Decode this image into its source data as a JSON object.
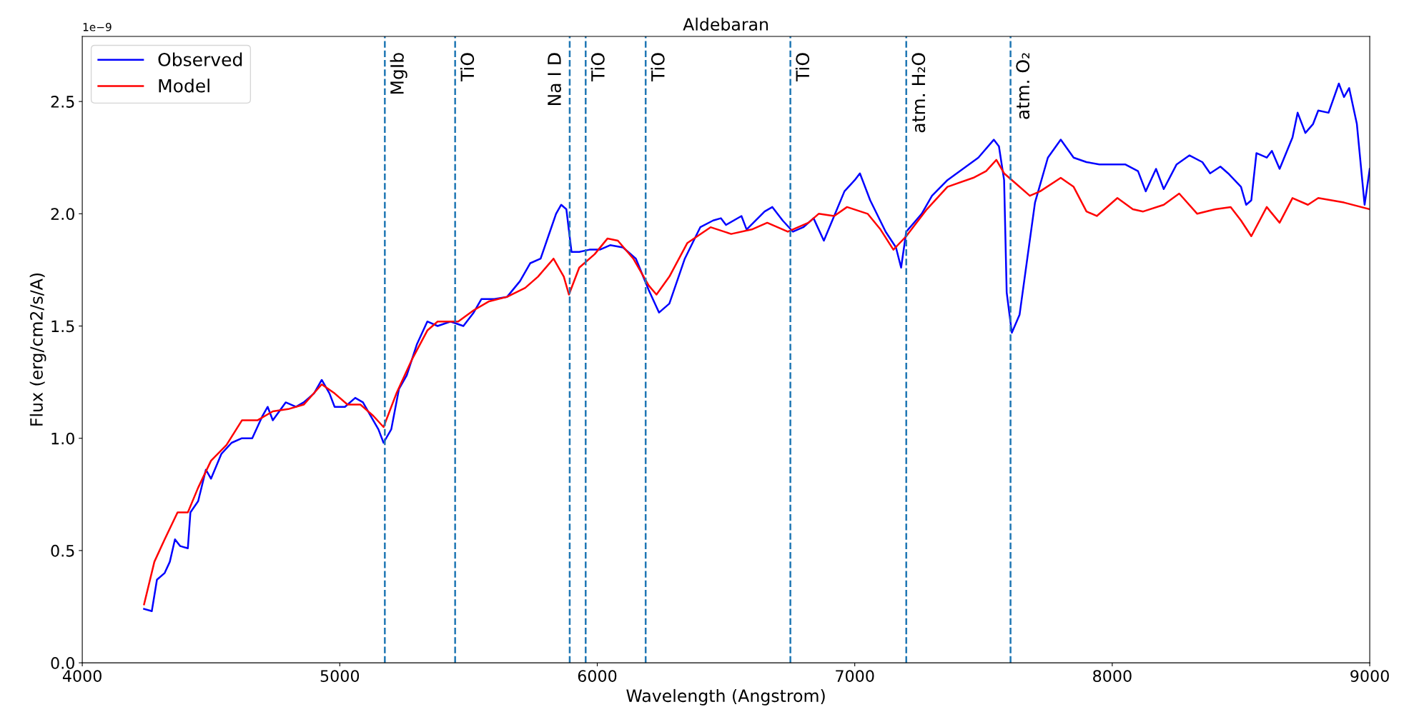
{
  "chart_data": {
    "type": "line",
    "title": "Aldebaran",
    "xlabel": "Wavelength (Angstrom)",
    "ylabel": "Flux (erg/cm2/s/A)",
    "annotations": [
      "1e−9"
    ],
    "xlim": [
      4000,
      9000
    ],
    "xticks": [
      4000,
      5000,
      6000,
      7000,
      8000,
      9000
    ],
    "ylim": [
      0,
      2.79
    ],
    "yticks": [
      {
        "value": 0,
        "label": "0.0"
      },
      0.5,
      {
        "value": 1,
        "label": "1.0"
      },
      1.5,
      {
        "value": 2,
        "label": "2.0"
      },
      2.5
    ],
    "grid": false,
    "legend": "top left",
    "line_style": "solid",
    "marker": "none",
    "series": [
      {
        "name": "Observed",
        "color": "#0000ff",
        "x": [
          4240,
          4270,
          4290,
          4320,
          4340,
          4360,
          4380,
          4410,
          4420,
          4450,
          4480,
          4500,
          4540,
          4580,
          4620,
          4660,
          4680,
          4700,
          4720,
          4740,
          4790,
          4830,
          4860,
          4900,
          4930,
          4960,
          4980,
          5020,
          5060,
          5090,
          5120,
          5150,
          5170,
          5200,
          5230,
          5260,
          5300,
          5340,
          5380,
          5430,
          5480,
          5520,
          5550,
          5600,
          5650,
          5700,
          5740,
          5780,
          5810,
          5840,
          5860,
          5880,
          5900,
          5930,
          5970,
          6010,
          6050,
          6100,
          6150,
          6200,
          6240,
          6280,
          6340,
          6400,
          6450,
          6480,
          6500,
          6560,
          6580,
          6650,
          6680,
          6720,
          6760,
          6800,
          6840,
          6880,
          6920,
          6960,
          7000,
          7020,
          7060,
          7120,
          7160,
          7180,
          7200,
          7260,
          7300,
          7360,
          7420,
          7480,
          7540,
          7560,
          7580,
          7590,
          7610,
          7640,
          7670,
          7700,
          7750,
          7800,
          7850,
          7900,
          7950,
          8000,
          8050,
          8100,
          8130,
          8170,
          8200,
          8250,
          8300,
          8350,
          8380,
          8420,
          8450,
          8500,
          8520,
          8540,
          8560,
          8600,
          8620,
          8650,
          8700,
          8720,
          8750,
          8780,
          8800,
          8840,
          8880,
          8900,
          8920,
          8950,
          8980,
          9000
        ],
        "values": [
          0.24,
          0.23,
          0.37,
          0.4,
          0.45,
          0.55,
          0.52,
          0.51,
          0.67,
          0.72,
          0.86,
          0.82,
          0.93,
          0.98,
          1.0,
          1.0,
          1.05,
          1.1,
          1.14,
          1.08,
          1.16,
          1.14,
          1.16,
          1.2,
          1.26,
          1.2,
          1.14,
          1.14,
          1.18,
          1.16,
          1.1,
          1.04,
          0.98,
          1.04,
          1.22,
          1.28,
          1.42,
          1.52,
          1.5,
          1.52,
          1.5,
          1.56,
          1.62,
          1.62,
          1.63,
          1.7,
          1.78,
          1.8,
          1.9,
          2.0,
          2.04,
          2.02,
          1.83,
          1.83,
          1.84,
          1.84,
          1.86,
          1.85,
          1.8,
          1.66,
          1.56,
          1.6,
          1.8,
          1.94,
          1.97,
          1.98,
          1.95,
          1.99,
          1.93,
          2.01,
          2.03,
          1.97,
          1.92,
          1.94,
          1.98,
          1.88,
          1.99,
          2.1,
          2.15,
          2.18,
          2.06,
          1.92,
          1.85,
          1.76,
          1.92,
          2.0,
          2.08,
          2.15,
          2.2,
          2.25,
          2.33,
          2.3,
          2.15,
          1.65,
          1.47,
          1.55,
          1.8,
          2.05,
          2.25,
          2.33,
          2.25,
          2.23,
          2.22,
          2.22,
          2.22,
          2.19,
          2.1,
          2.2,
          2.11,
          2.22,
          2.26,
          2.23,
          2.18,
          2.21,
          2.18,
          2.12,
          2.04,
          2.06,
          2.27,
          2.25,
          2.28,
          2.2,
          2.34,
          2.45,
          2.36,
          2.4,
          2.46,
          2.45,
          2.58,
          2.52,
          2.56,
          2.4,
          2.04,
          2.2
        ]
      },
      {
        "name": "Model",
        "color": "#ff0000",
        "x": [
          4240,
          4280,
          4320,
          4370,
          4410,
          4450,
          4500,
          4560,
          4620,
          4680,
          4740,
          4800,
          4860,
          4930,
          4980,
          5030,
          5080,
          5130,
          5170,
          5220,
          5280,
          5340,
          5380,
          5460,
          5520,
          5580,
          5650,
          5720,
          5770,
          5830,
          5870,
          5890,
          5930,
          5990,
          6040,
          6080,
          6140,
          6200,
          6230,
          6280,
          6350,
          6440,
          6520,
          6600,
          6660,
          6740,
          6820,
          6860,
          6920,
          6970,
          7050,
          7100,
          7150,
          7200,
          7280,
          7360,
          7460,
          7510,
          7550,
          7580,
          7620,
          7680,
          7720,
          7800,
          7850,
          7900,
          7940,
          8020,
          8080,
          8120,
          8200,
          8260,
          8330,
          8400,
          8460,
          8500,
          8540,
          8600,
          8650,
          8700,
          8760,
          8800,
          8900,
          9000
        ],
        "values": [
          0.26,
          0.45,
          0.55,
          0.67,
          0.67,
          0.78,
          0.9,
          0.97,
          1.08,
          1.08,
          1.12,
          1.13,
          1.15,
          1.24,
          1.2,
          1.15,
          1.15,
          1.1,
          1.05,
          1.2,
          1.35,
          1.48,
          1.52,
          1.52,
          1.57,
          1.61,
          1.63,
          1.67,
          1.72,
          1.8,
          1.72,
          1.64,
          1.76,
          1.82,
          1.89,
          1.88,
          1.8,
          1.68,
          1.64,
          1.72,
          1.87,
          1.94,
          1.91,
          1.93,
          1.96,
          1.92,
          1.96,
          2.0,
          1.99,
          2.03,
          2.0,
          1.93,
          1.84,
          1.9,
          2.02,
          2.12,
          2.16,
          2.19,
          2.24,
          2.18,
          2.14,
          2.08,
          2.1,
          2.16,
          2.12,
          2.01,
          1.99,
          2.07,
          2.02,
          2.01,
          2.04,
          2.09,
          2.0,
          2.02,
          2.03,
          1.97,
          1.9,
          2.03,
          1.96,
          2.07,
          2.04,
          2.07,
          2.05,
          2.02
        ]
      }
    ],
    "ref_lines": [
      {
        "axis": "x",
        "value": 5175,
        "label": "MgIb",
        "color": "#1f77b4",
        "line_style": "dashed"
      },
      {
        "axis": "x",
        "value": 5448,
        "label": "TiO",
        "color": "#1f77b4",
        "line_style": "dashed"
      },
      {
        "axis": "x",
        "value": 5893,
        "label": "Na I D",
        "color": "#1f77b4",
        "line_style": "dashed"
      },
      {
        "axis": "x",
        "value": 5955,
        "label": "TiO",
        "color": "#1f77b4",
        "line_style": "dashed"
      },
      {
        "axis": "x",
        "value": 6188,
        "label": "TiO",
        "color": "#1f77b4",
        "line_style": "dashed"
      },
      {
        "axis": "x",
        "value": 6750,
        "label": "TiO",
        "color": "#1f77b4",
        "line_style": "dashed"
      },
      {
        "axis": "x",
        "value": 7200,
        "label": "atm. H₂O",
        "color": "#1f77b4",
        "line_style": "dashed"
      },
      {
        "axis": "x",
        "value": 7605,
        "label": "atm. O₂",
        "color": "#1f77b4",
        "line_style": "dashed"
      }
    ]
  }
}
